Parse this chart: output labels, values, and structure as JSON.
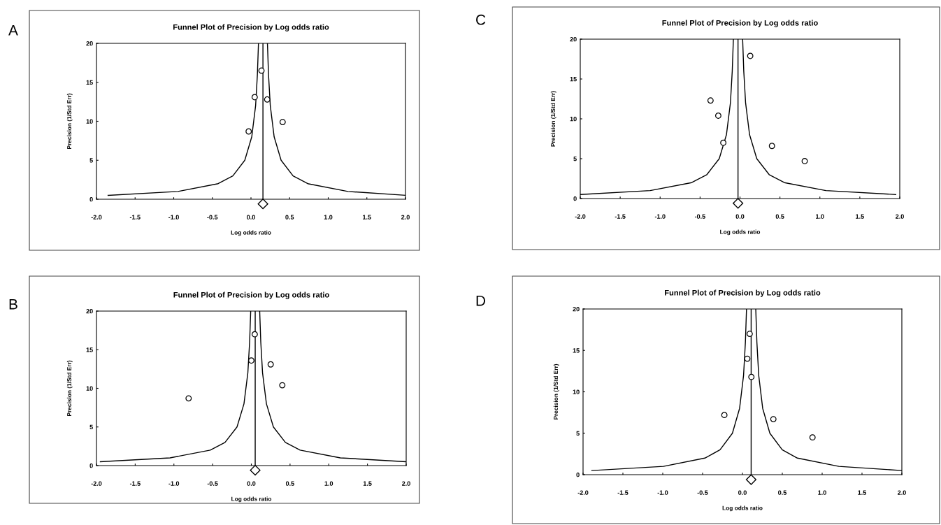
{
  "chart_data": [
    {
      "type": "scatter",
      "title": "Funnel Plot of Precision by Log odds ratio",
      "xlabel": "Log odds ratio",
      "ylabel": "Precision (1/Std Err)",
      "annotations": [
        "A"
      ],
      "marker": "circle",
      "grid": false,
      "legend": false,
      "xlim": [
        -2,
        2
      ],
      "ylim": [
        0,
        20
      ],
      "xticks": [
        {
          "value": -2,
          "label": "-2.0"
        },
        {
          "value": -1.5,
          "label": "-1.5"
        },
        {
          "value": -1,
          "label": "-1.0"
        },
        {
          "value": -0.5,
          "label": "-0.5"
        },
        {
          "value": 0,
          "label": "0.0"
        },
        {
          "value": 0.5,
          "label": "0.5"
        },
        {
          "value": 1,
          "label": "1.0"
        },
        {
          "value": 1.5,
          "label": "1.5"
        },
        {
          "value": 2,
          "label": "2.0"
        }
      ],
      "yticks": [
        0,
        5,
        10,
        15,
        20
      ],
      "ref_lines": [
        {
          "axis": "x",
          "value": 0.155,
          "color": "#000000"
        }
      ],
      "series": [
        {
          "color": "#000000",
          "x": [
            0.136,
            0.048,
            0.21,
            -0.03,
            0.41
          ],
          "values": [
            16.5,
            13.1,
            12.8,
            8.7,
            9.9
          ]
        },
        {
          "type": "line",
          "marker": "none",
          "color": "#000000",
          "x": [
            -1.85,
            -0.945,
            -0.425,
            -0.235,
            -0.08,
            0.01,
            0.06,
            0.083,
            0.097
          ],
          "values": [
            0.5,
            1,
            2,
            3,
            5,
            8,
            12,
            16,
            20
          ]
        },
        {
          "type": "line",
          "marker": "none",
          "color": "#000000",
          "x": [
            2.0,
            1.255,
            0.735,
            0.545,
            0.39,
            0.3,
            0.25,
            0.227,
            0.213
          ],
          "values": [
            0.5,
            1,
            2,
            3,
            5,
            8,
            12,
            16,
            20
          ]
        }
      ]
    },
    {
      "type": "scatter",
      "title": "Funnel Plot of Precision by Log odds ratio",
      "xlabel": "Log odds ratio",
      "ylabel": "Precision (1/Std Err)",
      "annotations": [
        "C"
      ],
      "marker": "circle",
      "grid": false,
      "legend": false,
      "xlim": [
        -2,
        2
      ],
      "ylim": [
        0,
        20
      ],
      "xticks": [
        {
          "value": -2,
          "label": "-2.0"
        },
        {
          "value": -1.5,
          "label": "-1.5"
        },
        {
          "value": -1,
          "label": "-1.0"
        },
        {
          "value": -0.5,
          "label": "-0.5"
        },
        {
          "value": 0,
          "label": "0.0"
        },
        {
          "value": 0.5,
          "label": "0.5"
        },
        {
          "value": 1,
          "label": "1.0"
        },
        {
          "value": 1.5,
          "label": "1.5"
        },
        {
          "value": 2,
          "label": "2.0"
        }
      ],
      "yticks": [
        0,
        5,
        10,
        15,
        20
      ],
      "ref_lines": [
        {
          "axis": "x",
          "value": -0.025,
          "color": "#000000"
        }
      ],
      "series": [
        {
          "color": "#000000",
          "x": [
            0.128,
            -0.369,
            -0.272,
            -0.209,
            0.4,
            0.81
          ],
          "values": [
            17.9,
            12.3,
            10.4,
            7.0,
            6.6,
            4.7
          ]
        },
        {
          "type": "line",
          "marker": "none",
          "color": "#000000",
          "x": [
            -2.0,
            -1.125,
            -0.605,
            -0.415,
            -0.26,
            -0.17,
            -0.12,
            -0.097,
            -0.083
          ],
          "values": [
            0.5,
            1,
            2,
            3,
            5,
            8,
            12,
            16,
            20
          ]
        },
        {
          "type": "line",
          "marker": "none",
          "color": "#000000",
          "x": [
            1.95,
            1.075,
            0.555,
            0.365,
            0.21,
            0.12,
            0.07,
            0.047,
            0.033
          ],
          "values": [
            0.5,
            1,
            2,
            3,
            5,
            8,
            12,
            16,
            20
          ]
        }
      ]
    },
    {
      "type": "scatter",
      "title": "Funnel Plot of Precision by Log odds ratio",
      "xlabel": "Log odds ratio",
      "ylabel": "Precision (1/Std Err)",
      "annotations": [
        "B"
      ],
      "marker": "circle",
      "grid": false,
      "legend": false,
      "xlim": [
        -2,
        2
      ],
      "ylim": [
        0,
        20
      ],
      "xticks": [
        {
          "value": -2,
          "label": "-2.0"
        },
        {
          "value": -1.5,
          "label": "-1.5"
        },
        {
          "value": -1,
          "label": "-1.0"
        },
        {
          "value": -0.5,
          "label": "-0.5"
        },
        {
          "value": 0,
          "label": "0.0"
        },
        {
          "value": 0.5,
          "label": "0.5"
        },
        {
          "value": 1,
          "label": "1.0"
        },
        {
          "value": 1.5,
          "label": "1.5"
        },
        {
          "value": 2,
          "label": "2.0"
        }
      ],
      "yticks": [
        0,
        5,
        10,
        15,
        20
      ],
      "ref_lines": [
        {
          "axis": "x",
          "value": 0.05,
          "color": "#000000"
        }
      ],
      "series": [
        {
          "color": "#000000",
          "x": [
            0.044,
            0.0,
            0.25,
            0.4,
            -0.81
          ],
          "values": [
            17.0,
            13.6,
            13.1,
            10.4,
            8.7
          ]
        },
        {
          "type": "line",
          "marker": "none",
          "color": "#000000",
          "x": [
            -1.95,
            -1.05,
            -0.53,
            -0.34,
            -0.185,
            -0.095,
            -0.045,
            -0.022,
            -0.008
          ],
          "values": [
            0.5,
            1,
            2,
            3,
            5,
            8,
            12,
            16,
            20
          ]
        },
        {
          "type": "line",
          "marker": "none",
          "color": "#000000",
          "x": [
            2.0,
            1.15,
            0.63,
            0.44,
            0.285,
            0.195,
            0.145,
            0.122,
            0.108
          ],
          "values": [
            0.5,
            1,
            2,
            3,
            5,
            8,
            12,
            16,
            20
          ]
        }
      ]
    },
    {
      "type": "scatter",
      "title": "Funnel Plot of Precision by Log odds ratio",
      "xlabel": "Log odds ratio",
      "ylabel": "Precision (1/Std Err)",
      "annotations": [
        "D"
      ],
      "marker": "circle",
      "grid": false,
      "legend": false,
      "xlim": [
        -2,
        2
      ],
      "ylim": [
        0,
        20
      ],
      "xticks": [
        {
          "value": -2,
          "label": "-2.0"
        },
        {
          "value": -1.5,
          "label": "-1.5"
        },
        {
          "value": -1,
          "label": "-1.0"
        },
        {
          "value": -0.5,
          "label": "-0.5"
        },
        {
          "value": 0,
          "label": "0.0"
        },
        {
          "value": 0.5,
          "label": "0.5"
        },
        {
          "value": 1,
          "label": "1.0"
        },
        {
          "value": 1.5,
          "label": "1.5"
        },
        {
          "value": 2,
          "label": "2.0"
        }
      ],
      "yticks": [
        0,
        5,
        10,
        15,
        20
      ],
      "ref_lines": [
        {
          "axis": "x",
          "value": 0.109,
          "color": "#000000"
        }
      ],
      "series": [
        {
          "color": "#000000",
          "x": [
            0.091,
            0.061,
            0.112,
            -0.227,
            0.388,
            0.879
          ],
          "values": [
            17.0,
            14.0,
            11.8,
            7.2,
            6.7,
            4.5
          ]
        },
        {
          "type": "line",
          "marker": "none",
          "color": "#000000",
          "x": [
            -1.89,
            -0.991,
            -0.471,
            -0.281,
            -0.126,
            -0.036,
            0.014,
            0.037,
            0.051
          ],
          "values": [
            0.5,
            1,
            2,
            3,
            5,
            8,
            12,
            16,
            20
          ]
        },
        {
          "type": "line",
          "marker": "none",
          "color": "#000000",
          "x": [
            2.0,
            1.209,
            0.689,
            0.499,
            0.344,
            0.254,
            0.204,
            0.181,
            0.167
          ],
          "values": [
            0.5,
            1,
            2,
            3,
            5,
            8,
            12,
            16,
            20
          ]
        }
      ]
    }
  ]
}
